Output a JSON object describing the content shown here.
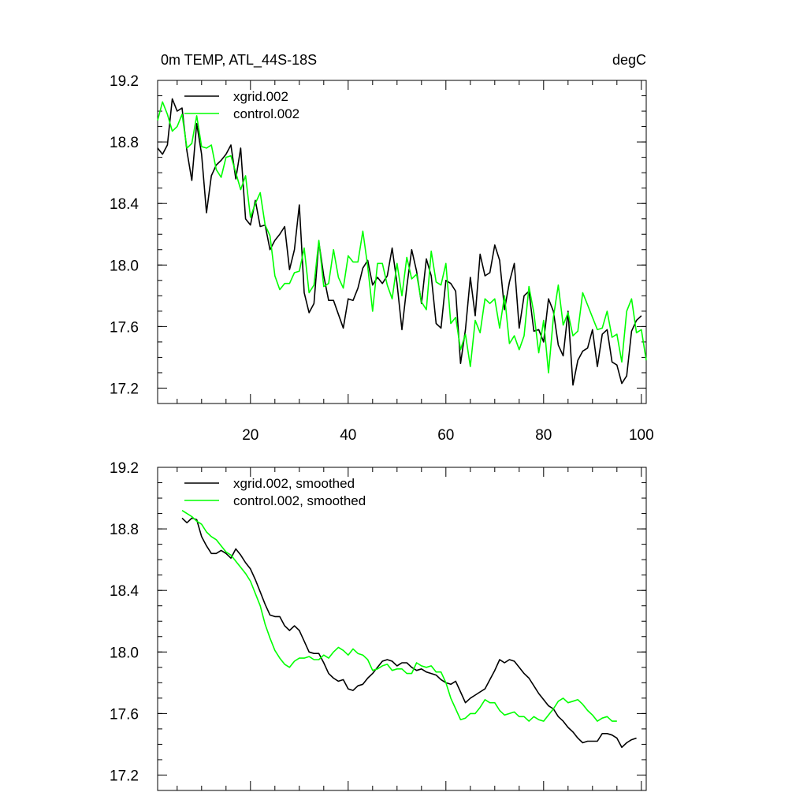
{
  "figure": {
    "title_left": "0m TEMP, ATL_44S-18S",
    "title_right": "degC"
  },
  "colors": {
    "xgrid": "#000000",
    "control": "#00ff00"
  },
  "chart_data": [
    {
      "type": "line",
      "title": "0m TEMP, ATL_44S-18S",
      "units": "degC",
      "xlabel": "",
      "ylabel": "",
      "xlim": [
        1,
        101
      ],
      "ylim": [
        17.1,
        19.2
      ],
      "x_ticks": [
        20,
        40,
        60,
        80,
        100
      ],
      "x_tick_labels": [
        "20",
        "40",
        "60",
        "80",
        "100"
      ],
      "y_ticks": [
        17.2,
        17.6,
        18.0,
        18.4,
        18.8,
        19.2
      ],
      "y_tick_labels": [
        "17.2",
        "17.6",
        "18.0",
        "18.4",
        "18.8",
        "19.2"
      ],
      "legend_position": "top-left",
      "series": [
        {
          "name": "xgrid.002",
          "color": "#000000",
          "x_start": 1,
          "values": [
            18.76,
            18.72,
            18.78,
            19.08,
            19.0,
            19.02,
            18.74,
            18.55,
            18.92,
            18.72,
            18.34,
            18.58,
            18.65,
            18.68,
            18.72,
            18.78,
            18.56,
            18.76,
            18.3,
            18.26,
            18.42,
            18.25,
            18.26,
            18.1,
            18.16,
            18.2,
            18.25,
            17.97,
            18.1,
            18.39,
            17.82,
            17.69,
            17.75,
            18.15,
            17.93,
            17.77,
            17.77,
            17.68,
            17.59,
            17.78,
            17.77,
            17.85,
            17.98,
            18.03,
            17.87,
            17.92,
            17.88,
            17.93,
            18.11,
            17.88,
            17.58,
            17.86,
            18.1,
            17.96,
            17.75,
            18.04,
            17.93,
            17.62,
            17.59,
            17.9,
            17.88,
            17.83,
            17.36,
            17.58,
            17.92,
            17.67,
            18.07,
            17.93,
            17.95,
            18.13,
            18.03,
            17.71,
            17.89,
            18.01,
            17.59,
            17.8,
            17.83,
            17.57,
            17.58,
            17.5,
            17.78,
            17.7,
            17.48,
            17.41,
            17.7,
            17.22,
            17.38,
            17.44,
            17.46,
            17.58,
            17.34,
            17.55,
            17.58,
            17.37,
            17.35,
            17.23,
            17.28,
            17.57,
            17.64,
            17.67
          ]
        },
        {
          "name": "control.002",
          "color": "#00ff00",
          "x_start": 1,
          "values": [
            18.94,
            19.06,
            18.98,
            18.87,
            18.9,
            18.98,
            18.76,
            18.79,
            18.97,
            18.77,
            18.76,
            18.78,
            18.62,
            18.57,
            18.7,
            18.71,
            18.6,
            18.49,
            18.58,
            18.31,
            18.4,
            18.47,
            18.26,
            18.19,
            17.93,
            17.84,
            17.88,
            17.88,
            17.95,
            17.96,
            18.11,
            17.82,
            17.87,
            18.16,
            17.86,
            17.88,
            18.1,
            17.92,
            17.85,
            18.06,
            18.02,
            18.02,
            18.22,
            17.99,
            17.7,
            18.01,
            18.01,
            17.87,
            17.78,
            18.01,
            17.8,
            18.05,
            17.91,
            17.94,
            17.76,
            17.71,
            18.09,
            17.89,
            17.87,
            18.01,
            17.62,
            17.66,
            17.45,
            17.55,
            17.34,
            17.64,
            17.56,
            17.78,
            17.75,
            17.78,
            17.59,
            17.8,
            17.49,
            17.54,
            17.45,
            17.54,
            17.86,
            17.69,
            17.43,
            17.64,
            17.3,
            17.66,
            17.87,
            17.61,
            17.69,
            17.54,
            17.57,
            17.82,
            17.74,
            17.66,
            17.58,
            17.59,
            17.7,
            17.53,
            17.55,
            17.37,
            17.7,
            17.78,
            17.56,
            17.58,
            17.38
          ]
        }
      ]
    },
    {
      "type": "line",
      "title": "",
      "xlabel": "",
      "ylabel": "",
      "xlim": [
        1,
        101
      ],
      "ylim": [
        17.1,
        19.2
      ],
      "x_ticks": [
        20,
        40,
        60,
        80,
        100
      ],
      "x_tick_labels": [],
      "y_ticks": [
        17.2,
        17.6,
        18.0,
        18.4,
        18.8,
        19.2
      ],
      "y_tick_labels": [
        "17.2",
        "17.6",
        "18.0",
        "18.4",
        "18.8",
        "19.2"
      ],
      "legend_position": "top-left",
      "series": [
        {
          "name": "xgrid.002, smoothed",
          "color": "#000000",
          "x_start": 6,
          "values": [
            18.87,
            18.84,
            18.87,
            18.86,
            18.75,
            18.69,
            18.64,
            18.64,
            18.66,
            18.64,
            18.61,
            18.67,
            18.63,
            18.58,
            18.54,
            18.47,
            18.39,
            18.31,
            18.24,
            18.23,
            18.23,
            18.17,
            18.14,
            18.17,
            18.14,
            18.07,
            18.0,
            17.99,
            17.99,
            17.93,
            17.86,
            17.83,
            17.81,
            17.82,
            17.76,
            17.75,
            17.78,
            17.79,
            17.83,
            17.86,
            17.9,
            17.94,
            17.95,
            17.94,
            17.91,
            17.93,
            17.93,
            17.9,
            17.88,
            17.89,
            17.87,
            17.86,
            17.85,
            17.82,
            17.8,
            17.79,
            17.81,
            17.74,
            17.67,
            17.7,
            17.72,
            17.74,
            17.76,
            17.82,
            17.88,
            17.95,
            17.93,
            17.95,
            17.94,
            17.9,
            17.86,
            17.83,
            17.78,
            17.73,
            17.69,
            17.65,
            17.63,
            17.58,
            17.55,
            17.51,
            17.48,
            17.44,
            17.41,
            17.42,
            17.42,
            17.42,
            17.47,
            17.47,
            17.46,
            17.44,
            17.38,
            17.41,
            17.43,
            17.44
          ]
        },
        {
          "name": "control.002, smoothed",
          "color": "#00ff00",
          "x_start": 6,
          "values": [
            18.92,
            18.9,
            18.88,
            18.85,
            18.83,
            18.78,
            18.75,
            18.73,
            18.69,
            18.65,
            18.63,
            18.59,
            18.55,
            18.51,
            18.46,
            18.38,
            18.3,
            18.18,
            18.09,
            18.01,
            17.96,
            17.92,
            17.9,
            17.94,
            17.96,
            17.96,
            17.97,
            17.95,
            17.95,
            17.98,
            17.96,
            18.0,
            18.03,
            18.01,
            17.98,
            18.02,
            17.99,
            17.98,
            17.95,
            17.88,
            17.89,
            17.91,
            17.92,
            17.88,
            17.89,
            17.89,
            17.86,
            17.86,
            17.93,
            17.91,
            17.9,
            17.91,
            17.87,
            17.87,
            17.8,
            17.7,
            17.63,
            17.56,
            17.57,
            17.6,
            17.6,
            17.64,
            17.69,
            17.67,
            17.67,
            17.62,
            17.59,
            17.6,
            17.61,
            17.58,
            17.58,
            17.55,
            17.58,
            17.56,
            17.55,
            17.59,
            17.63,
            17.68,
            17.7,
            17.67,
            17.68,
            17.69,
            17.66,
            17.62,
            17.59,
            17.55,
            17.57,
            17.58,
            17.55,
            17.55
          ]
        }
      ]
    }
  ]
}
